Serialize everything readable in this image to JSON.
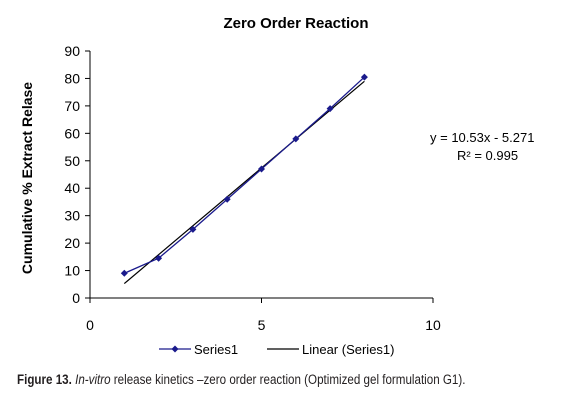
{
  "chart_data": {
    "type": "scatter",
    "title": "Zero Order Reaction",
    "xlabel": "",
    "ylabel": "Cumulative %  Extract  Relase",
    "xlim": [
      0,
      10
    ],
    "ylim": [
      0,
      90
    ],
    "xticks": [
      0,
      5,
      10
    ],
    "yticks": [
      0,
      10,
      20,
      30,
      40,
      50,
      60,
      70,
      80,
      90
    ],
    "grid": false,
    "legend_position": "bottom",
    "series": [
      {
        "name": "Series1",
        "type": "line-markers",
        "marker": "diamond",
        "color": "#1a1a8c",
        "x": [
          1,
          2,
          3,
          4,
          5,
          6,
          7,
          8
        ],
        "y": [
          9,
          14.5,
          25,
          36,
          47,
          58,
          69,
          80.5
        ]
      },
      {
        "name": "Linear (Series1)",
        "type": "trendline",
        "color": "#000000",
        "slope": 10.53,
        "intercept": -5.271,
        "x_range": [
          1,
          8
        ]
      }
    ],
    "annotations": {
      "equation": "y = 10.53x - 5.271",
      "r_squared": "R² = 0.995"
    }
  },
  "caption": {
    "label": "Figure 13.",
    "italic": "In-vitro",
    "rest": " release kinetics –zero order reaction (Optimized gel formulation G1)."
  }
}
